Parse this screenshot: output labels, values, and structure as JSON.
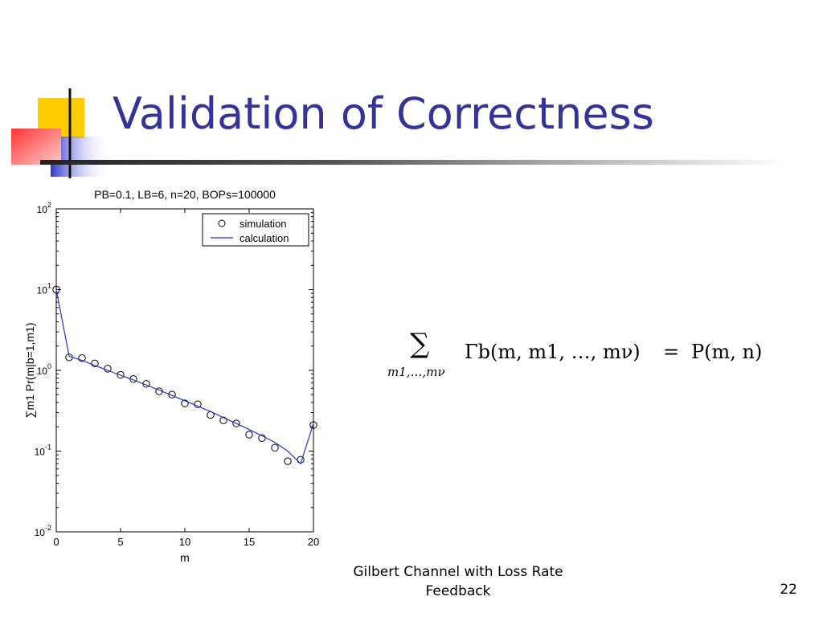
{
  "slide": {
    "title": "Validation of Correctness",
    "footer": "Gilbert Channel with Loss Rate Feedback",
    "page_number": "22",
    "accent_color": "#333399"
  },
  "formula": {
    "sum_symbol": "∑",
    "subscript": "m1,…,mν",
    "lhs": "Γb(m, m1, …, mν)",
    "equals": "=",
    "rhs": "P(m, n)"
  },
  "chart_data": {
    "type": "line",
    "title": "PB=0.1, LB=6, n=20, BOPs=100000",
    "xlabel": "m",
    "ylabel": "∑m1 Pr(m|b=1,m1)",
    "xlim": [
      0,
      20
    ],
    "ylim": [
      0.01,
      100
    ],
    "yscale": "log",
    "grid": false,
    "legend_position": "top-right",
    "x_ticks": [
      "0",
      "5",
      "10",
      "15",
      "20"
    ],
    "y_ticks": [
      "10^-2",
      "10^-1",
      "10^0",
      "10^1",
      "10^2"
    ],
    "series": [
      {
        "name": "simulation",
        "style": "circle-markers",
        "color": "#000000",
        "x": [
          0,
          1,
          2,
          3,
          4,
          5,
          6,
          7,
          8,
          9,
          10,
          11,
          12,
          13,
          14,
          15,
          16,
          17,
          18,
          19,
          20
        ],
        "y": [
          10,
          1.45,
          1.42,
          1.22,
          1.05,
          0.88,
          0.78,
          0.68,
          0.55,
          0.5,
          0.39,
          0.38,
          0.28,
          0.24,
          0.22,
          0.16,
          0.145,
          0.11,
          0.075,
          0.078,
          0.21
        ]
      },
      {
        "name": "calculation",
        "style": "line",
        "color": "#2233cc",
        "x": [
          0,
          1,
          2,
          3,
          4,
          5,
          6,
          7,
          8,
          9,
          10,
          11,
          12,
          13,
          14,
          15,
          16,
          17,
          18,
          19,
          20
        ],
        "y": [
          10,
          1.5,
          1.33,
          1.15,
          1.0,
          0.87,
          0.76,
          0.66,
          0.57,
          0.49,
          0.42,
          0.36,
          0.31,
          0.26,
          0.22,
          0.185,
          0.155,
          0.128,
          0.1,
          0.07,
          0.22
        ]
      }
    ]
  }
}
